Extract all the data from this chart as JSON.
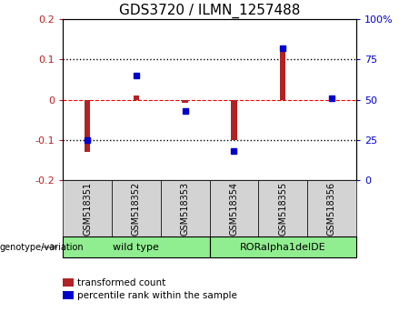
{
  "title": "GDS3720 / ILMN_1257488",
  "categories": [
    "GSM518351",
    "GSM518352",
    "GSM518353",
    "GSM518354",
    "GSM518355",
    "GSM518356"
  ],
  "red_bars": [
    -0.13,
    0.01,
    -0.008,
    -0.1,
    0.12,
    0.008
  ],
  "blue_dots": [
    25,
    65,
    43,
    18,
    82,
    51
  ],
  "ylim_left": [
    -0.2,
    0.2
  ],
  "ylim_right": [
    0,
    100
  ],
  "yticks_left": [
    -0.2,
    -0.1,
    0.0,
    0.1,
    0.2
  ],
  "yticks_right": [
    0,
    25,
    50,
    75,
    100
  ],
  "ytick_labels_left": [
    "-0.2",
    "-0.1",
    "0",
    "0.1",
    "0.2"
  ],
  "ytick_labels_right": [
    "0",
    "25",
    "50",
    "75",
    "100%"
  ],
  "hlines": [
    0.1,
    0.0,
    -0.1
  ],
  "hline_styles": [
    "dotted",
    "dashed",
    "dotted"
  ],
  "hline_colors": [
    "black",
    "red",
    "black"
  ],
  "group1_label": "wild type",
  "group2_label": "RORalpha1delDE",
  "group1_color": "#90EE90",
  "group2_color": "#90EE90",
  "bar_color": "#B22222",
  "dot_color": "#0000CD",
  "legend_red_label": "transformed count",
  "legend_blue_label": "percentile rank within the sample",
  "genotype_label": "genotype/variation",
  "title_fontsize": 11,
  "axis_fontsize": 8,
  "tick_label_fontsize": 7,
  "bar_width": 0.12
}
